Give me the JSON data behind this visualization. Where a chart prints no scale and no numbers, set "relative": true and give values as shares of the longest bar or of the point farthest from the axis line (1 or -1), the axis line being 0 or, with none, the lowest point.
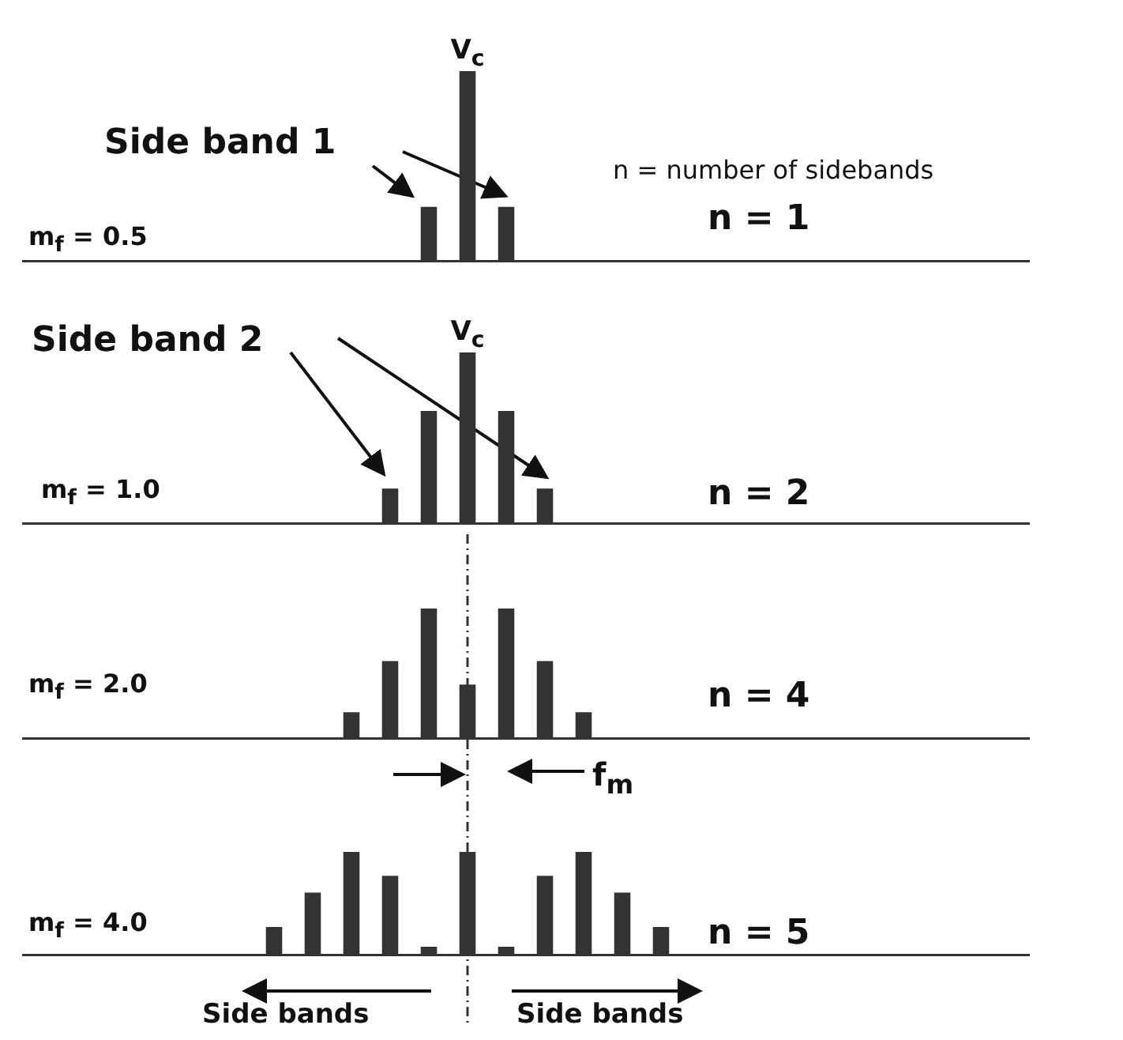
{
  "chart_data": [
    {
      "type": "bar",
      "relative": true,
      "color": "#333333",
      "categories": [
        null,
        null,
        null
      ],
      "values": [
        0.29,
        1,
        0.29
      ],
      "annotations": [
        "V$_{c}$",
        "Side band 1",
        "n = number of sidebands",
        "n = 1",
        "m$_{f}$ = 0.5"
      ]
    },
    {
      "type": "bar",
      "relative": true,
      "color": "#333333",
      "categories": [
        null,
        null,
        null,
        null,
        null
      ],
      "values": [
        0.21,
        0.66,
        1,
        0.66,
        0.21
      ],
      "annotations": [
        "V$_{c}$",
        "Side band 2",
        "m$_{f}$ = 1.0",
        "n = 2"
      ]
    },
    {
      "type": "bar",
      "relative": true,
      "color": "#333333",
      "categories": [
        null,
        null,
        null,
        null,
        null,
        null,
        null
      ],
      "values": [
        0.21,
        0.6,
        1,
        0.42,
        1,
        0.6,
        0.21
      ],
      "annotations": [
        "m$_{f}$ = 2.0",
        "n = 4"
      ]
    },
    {
      "type": "bar",
      "relative": true,
      "color": "#333333",
      "categories": [
        null,
        null,
        null,
        null,
        null,
        null,
        null,
        null,
        null,
        null,
        null
      ],
      "values": [
        0.28,
        0.61,
        1,
        0.77,
        0.09,
        1,
        0.09,
        0.77,
        1,
        0.61,
        0.28
      ],
      "annotations": [
        "f$_{m}$",
        "m$_{f}$ = 4.0",
        "n = 5",
        "Side bands",
        "Side bands"
      ]
    }
  ]
}
